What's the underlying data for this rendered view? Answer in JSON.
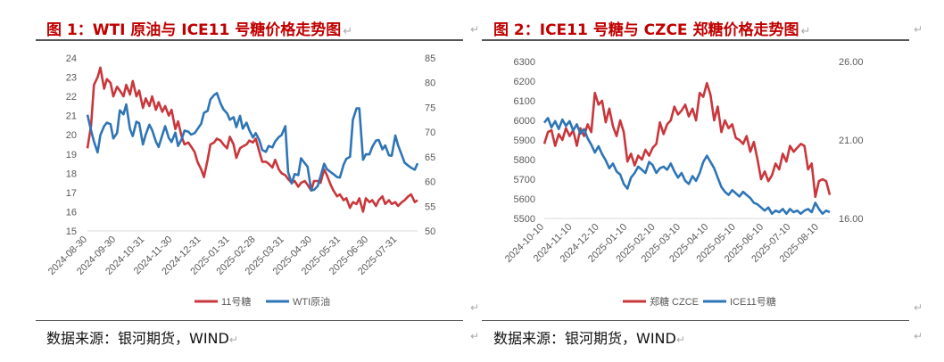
{
  "return_mark": "↵",
  "colors": {
    "red": "#c9373c",
    "blue": "#2e75b6",
    "title": "#c00000",
    "axis": "#d9d9d9"
  },
  "chart_data": [
    {
      "type": "line",
      "title": "图 1：WTI 原油与 ICE11 号糖价格走势图",
      "source": "数据来源：银河期货，WIND",
      "x_labels": [
        "2024-08-30",
        "2024-09-30",
        "2024-10-31",
        "2024-11-30",
        "2024-12-31",
        "2025-01-31",
        "2025-02-28",
        "2025-03-31",
        "2025-04-30",
        "2025-05-31",
        "2025-06-30",
        "2025-07-31"
      ],
      "x_range": [
        "2024-08-30",
        "2025-08-22"
      ],
      "y_left": {
        "ticks": [
          15,
          16,
          17,
          18,
          19,
          20,
          21,
          22,
          23,
          24
        ],
        "lim": [
          15,
          24
        ]
      },
      "y_right": {
        "ticks": [
          50,
          55,
          60,
          65,
          70,
          75,
          80,
          85
        ],
        "lim": [
          50,
          85
        ]
      },
      "legend": [
        "11号糖",
        "WTI原油"
      ],
      "legend_position": "bottom",
      "series": [
        {
          "name": "11号糖",
          "axis": "left",
          "color": "red",
          "dates": [
            "2024-08-30",
            "2024-09-03",
            "2024-09-06",
            "2024-09-10",
            "2024-09-13",
            "2024-09-17",
            "2024-09-20",
            "2024-09-24",
            "2024-09-27",
            "2024-10-01",
            "2024-10-04",
            "2024-10-08",
            "2024-10-11",
            "2024-10-15",
            "2024-10-18",
            "2024-10-22",
            "2024-10-25",
            "2024-10-29",
            "2024-11-01",
            "2024-11-05",
            "2024-11-08",
            "2024-11-12",
            "2024-11-15",
            "2024-11-19",
            "2024-11-22",
            "2024-11-26",
            "2024-11-29",
            "2024-12-03",
            "2024-12-06",
            "2024-12-10",
            "2024-12-13",
            "2024-12-17",
            "2024-12-20",
            "2024-12-24",
            "2024-12-27",
            "2024-12-31",
            "2025-01-03",
            "2025-01-07",
            "2025-01-10",
            "2025-01-14",
            "2025-01-17",
            "2025-01-21",
            "2025-01-24",
            "2025-01-28",
            "2025-01-31",
            "2025-02-04",
            "2025-02-07",
            "2025-02-11",
            "2025-02-14",
            "2025-02-18",
            "2025-02-21",
            "2025-02-25",
            "2025-02-28",
            "2025-03-04",
            "2025-03-07",
            "2025-03-11",
            "2025-03-14",
            "2025-03-18",
            "2025-03-21",
            "2025-03-25",
            "2025-03-28",
            "2025-04-01",
            "2025-04-04",
            "2025-04-08",
            "2025-04-11",
            "2025-04-15",
            "2025-04-18",
            "2025-04-22",
            "2025-04-25",
            "2025-04-29",
            "2025-05-02",
            "2025-05-06",
            "2025-05-09",
            "2025-05-13",
            "2025-05-16",
            "2025-05-20",
            "2025-05-23",
            "2025-05-27",
            "2025-05-30",
            "2025-06-03",
            "2025-06-06",
            "2025-06-10",
            "2025-06-13",
            "2025-06-17",
            "2025-06-20",
            "2025-06-24",
            "2025-06-27",
            "2025-07-01",
            "2025-07-04",
            "2025-07-08",
            "2025-07-11",
            "2025-07-15",
            "2025-07-18",
            "2025-07-22",
            "2025-07-25",
            "2025-07-29",
            "2025-08-01",
            "2025-08-05",
            "2025-08-08",
            "2025-08-12",
            "2025-08-15",
            "2025-08-19",
            "2025-08-22"
          ],
          "values": [
            19.3,
            20.5,
            22.6,
            23.0,
            23.5,
            22.4,
            22.9,
            22.7,
            22.0,
            22.5,
            22.3,
            22.0,
            22.6,
            22.1,
            22.8,
            22.0,
            22.3,
            21.4,
            21.9,
            21.5,
            22.0,
            21.3,
            21.7,
            21.2,
            21.5,
            21.0,
            21.3,
            20.3,
            20.7,
            19.9,
            19.5,
            19.6,
            19.4,
            19.1,
            18.6,
            18.2,
            17.8,
            18.7,
            19.5,
            19.6,
            19.8,
            19.7,
            19.5,
            19.3,
            19.9,
            19.5,
            18.8,
            19.3,
            19.4,
            19.5,
            19.7,
            19.6,
            19.8,
            19.1,
            18.6,
            18.6,
            18.5,
            18.3,
            18.7,
            18.2,
            18.0,
            17.9,
            17.7,
            17.5,
            17.6,
            17.3,
            17.5,
            17.6,
            17.4,
            17.1,
            17.6,
            17.6,
            17.5,
            18.2,
            17.9,
            17.4,
            17.1,
            16.8,
            16.9,
            16.6,
            16.7,
            16.2,
            16.5,
            16.4,
            16.7,
            16.0,
            16.7,
            16.5,
            16.6,
            16.3,
            16.6,
            16.8,
            16.4,
            16.6,
            16.4,
            16.5,
            16.3,
            16.5,
            16.6,
            16.8,
            16.9,
            16.5,
            16.6
          ]
        },
        {
          "name": "WTI原油",
          "axis": "right",
          "color": "blue",
          "dates": [
            "2024-08-30",
            "2024-09-03",
            "2024-09-06",
            "2024-09-10",
            "2024-09-13",
            "2024-09-17",
            "2024-09-20",
            "2024-09-24",
            "2024-09-27",
            "2024-10-01",
            "2024-10-04",
            "2024-10-08",
            "2024-10-11",
            "2024-10-15",
            "2024-10-18",
            "2024-10-22",
            "2024-10-25",
            "2024-10-29",
            "2024-11-01",
            "2024-11-05",
            "2024-11-08",
            "2024-11-12",
            "2024-11-15",
            "2024-11-19",
            "2024-11-22",
            "2024-11-26",
            "2024-11-29",
            "2024-12-03",
            "2024-12-06",
            "2024-12-10",
            "2024-12-13",
            "2024-12-17",
            "2024-12-20",
            "2024-12-24",
            "2024-12-27",
            "2024-12-31",
            "2025-01-03",
            "2025-01-07",
            "2025-01-10",
            "2025-01-14",
            "2025-01-17",
            "2025-01-21",
            "2025-01-24",
            "2025-01-28",
            "2025-01-31",
            "2025-02-04",
            "2025-02-07",
            "2025-02-11",
            "2025-02-14",
            "2025-02-18",
            "2025-02-21",
            "2025-02-25",
            "2025-02-28",
            "2025-03-04",
            "2025-03-07",
            "2025-03-11",
            "2025-03-14",
            "2025-03-18",
            "2025-03-21",
            "2025-03-25",
            "2025-03-28",
            "2025-04-01",
            "2025-04-04",
            "2025-04-08",
            "2025-04-11",
            "2025-04-15",
            "2025-04-18",
            "2025-04-22",
            "2025-04-25",
            "2025-04-29",
            "2025-05-02",
            "2025-05-06",
            "2025-05-09",
            "2025-05-13",
            "2025-05-16",
            "2025-05-20",
            "2025-05-23",
            "2025-05-27",
            "2025-05-30",
            "2025-06-03",
            "2025-06-06",
            "2025-06-10",
            "2025-06-13",
            "2025-06-17",
            "2025-06-20",
            "2025-06-24",
            "2025-06-27",
            "2025-07-01",
            "2025-07-04",
            "2025-07-08",
            "2025-07-11",
            "2025-07-15",
            "2025-07-18",
            "2025-07-22",
            "2025-07-25",
            "2025-07-29",
            "2025-08-01",
            "2025-08-05",
            "2025-08-08",
            "2025-08-12",
            "2025-08-15",
            "2025-08-19",
            "2025-08-22"
          ],
          "values": [
            73.5,
            70.3,
            68.1,
            65.9,
            69.4,
            71.2,
            71.9,
            71.6,
            68.7,
            69.8,
            74.4,
            73.6,
            75.6,
            70.6,
            69.2,
            72.1,
            71.8,
            67.5,
            69.5,
            71.5,
            70.4,
            68.1,
            67.0,
            69.4,
            71.2,
            68.8,
            68.0,
            69.9,
            67.2,
            68.6,
            70.3,
            70.1,
            69.5,
            69.8,
            70.6,
            71.7,
            73.9,
            74.3,
            76.6,
            77.5,
            77.9,
            75.8,
            74.6,
            73.8,
            72.5,
            73.0,
            71.0,
            73.3,
            70.7,
            71.9,
            70.4,
            68.9,
            69.8,
            68.3,
            66.4,
            66.0,
            67.2,
            66.9,
            68.1,
            69.0,
            69.4,
            71.2,
            61.9,
            59.6,
            61.5,
            61.3,
            64.7,
            63.7,
            63.0,
            58.2,
            58.3,
            59.1,
            61.0,
            63.6,
            62.5,
            61.9,
            61.5,
            60.9,
            60.8,
            63.4,
            64.6,
            65.0,
            72.5,
            74.8,
            74.8,
            64.4,
            65.5,
            65.5,
            67.0,
            68.3,
            68.4,
            66.5,
            67.3,
            65.3,
            65.2,
            69.3,
            67.3,
            65.3,
            63.8,
            63.2,
            62.8,
            62.4,
            63.7
          ]
        }
      ]
    },
    {
      "type": "line",
      "title": "图 2：ICE11 号糖与 CZCE 郑糖价格走势图",
      "source": "数据来源：银河期货，WIND",
      "x_labels": [
        "2024-10-10",
        "2024-11-10",
        "2024-12-10",
        "2025-01-10",
        "2025-02-10",
        "2025-03-10",
        "2025-04-10",
        "2025-05-10",
        "2025-06-10",
        "2025-07-10",
        "2025-08-10"
      ],
      "x_range": [
        "2024-10-10",
        "2025-08-22"
      ],
      "y_left": {
        "ticks": [
          5500,
          5600,
          5700,
          5800,
          5900,
          6000,
          6100,
          6200,
          6300
        ],
        "lim": [
          5500,
          6300
        ]
      },
      "y_right": {
        "ticks": [
          "16.00",
          "21.00",
          "26.00"
        ],
        "lim": [
          16,
          26
        ]
      },
      "legend": [
        "郑糖 CZCE",
        "ICE11号糖"
      ],
      "legend_position": "bottom",
      "series": [
        {
          "name": "郑糖 CZCE",
          "axis": "left",
          "color": "red",
          "dates": [
            "2024-10-10",
            "2024-10-14",
            "2024-10-18",
            "2024-10-22",
            "2024-10-26",
            "2024-10-30",
            "2024-11-03",
            "2024-11-07",
            "2024-11-11",
            "2024-11-15",
            "2024-11-19",
            "2024-11-23",
            "2024-11-27",
            "2024-12-01",
            "2024-12-05",
            "2024-12-09",
            "2024-12-13",
            "2024-12-17",
            "2024-12-21",
            "2024-12-25",
            "2024-12-29",
            "2025-01-02",
            "2025-01-06",
            "2025-01-10",
            "2025-01-14",
            "2025-01-18",
            "2025-01-22",
            "2025-01-26",
            "2025-01-30",
            "2025-02-03",
            "2025-02-07",
            "2025-02-11",
            "2025-02-15",
            "2025-02-19",
            "2025-02-23",
            "2025-02-27",
            "2025-03-03",
            "2025-03-07",
            "2025-03-11",
            "2025-03-15",
            "2025-03-19",
            "2025-03-23",
            "2025-03-27",
            "2025-03-31",
            "2025-04-04",
            "2025-04-08",
            "2025-04-12",
            "2025-04-16",
            "2025-04-20",
            "2025-04-24",
            "2025-04-28",
            "2025-05-02",
            "2025-05-06",
            "2025-05-10",
            "2025-05-14",
            "2025-05-18",
            "2025-05-22",
            "2025-05-26",
            "2025-05-30",
            "2025-06-03",
            "2025-06-07",
            "2025-06-11",
            "2025-06-15",
            "2025-06-19",
            "2025-06-23",
            "2025-06-27",
            "2025-07-01",
            "2025-07-05",
            "2025-07-09",
            "2025-07-13",
            "2025-07-17",
            "2025-07-21",
            "2025-07-25",
            "2025-07-29",
            "2025-08-02",
            "2025-08-06",
            "2025-08-10",
            "2025-08-14",
            "2025-08-18",
            "2025-08-22"
          ],
          "values": [
            5880,
            5940,
            5950,
            5870,
            5930,
            5900,
            5960,
            5920,
            5950,
            5870,
            5960,
            5920,
            5980,
            5940,
            6140,
            6080,
            6100,
            5990,
            6060,
            5970,
            5920,
            6000,
            5940,
            5790,
            5830,
            5770,
            5820,
            5800,
            5850,
            5820,
            5860,
            5880,
            5990,
            5930,
            5980,
            6000,
            6070,
            6030,
            6050,
            6080,
            6020,
            6060,
            6000,
            6140,
            6120,
            6190,
            6130,
            6000,
            6070,
            5940,
            6000,
            5960,
            5980,
            5910,
            5900,
            5880,
            5920,
            5840,
            5890,
            5800,
            5700,
            5740,
            5690,
            5720,
            5780,
            5750,
            5830,
            5790,
            5870,
            5840,
            5860,
            5880,
            5870,
            5750,
            5780,
            5610,
            5690,
            5700,
            5690,
            5620
          ]
        },
        {
          "name": "ICE11号糖",
          "axis": "right",
          "color": "blue",
          "dates": [
            "2024-10-10",
            "2024-10-14",
            "2024-10-18",
            "2024-10-22",
            "2024-10-26",
            "2024-10-30",
            "2024-11-03",
            "2024-11-07",
            "2024-11-11",
            "2024-11-15",
            "2024-11-19",
            "2024-11-23",
            "2024-11-27",
            "2024-12-01",
            "2024-12-05",
            "2024-12-09",
            "2024-12-13",
            "2024-12-17",
            "2024-12-21",
            "2024-12-25",
            "2024-12-29",
            "2025-01-02",
            "2025-01-06",
            "2025-01-10",
            "2025-01-14",
            "2025-01-18",
            "2025-01-22",
            "2025-01-26",
            "2025-01-30",
            "2025-02-03",
            "2025-02-07",
            "2025-02-11",
            "2025-02-15",
            "2025-02-19",
            "2025-02-23",
            "2025-02-27",
            "2025-03-03",
            "2025-03-07",
            "2025-03-11",
            "2025-03-15",
            "2025-03-19",
            "2025-03-23",
            "2025-03-27",
            "2025-03-31",
            "2025-04-04",
            "2025-04-08",
            "2025-04-12",
            "2025-04-16",
            "2025-04-20",
            "2025-04-24",
            "2025-04-28",
            "2025-05-02",
            "2025-05-06",
            "2025-05-10",
            "2025-05-14",
            "2025-05-18",
            "2025-05-22",
            "2025-05-26",
            "2025-05-30",
            "2025-06-03",
            "2025-06-07",
            "2025-06-11",
            "2025-06-15",
            "2025-06-19",
            "2025-06-23",
            "2025-06-27",
            "2025-07-01",
            "2025-07-05",
            "2025-07-09",
            "2025-07-13",
            "2025-07-17",
            "2025-07-21",
            "2025-07-25",
            "2025-07-29",
            "2025-08-02",
            "2025-08-06",
            "2025-08-10",
            "2025-08-14",
            "2025-08-18",
            "2025-08-22"
          ],
          "values": [
            22.1,
            22.4,
            21.8,
            22.2,
            21.7,
            22.3,
            21.9,
            22.2,
            21.6,
            22.0,
            21.4,
            21.7,
            21.1,
            20.7,
            20.2,
            20.6,
            20.1,
            19.7,
            19.2,
            19.5,
            19.0,
            18.8,
            18.2,
            17.9,
            18.6,
            18.9,
            19.3,
            19.1,
            18.9,
            19.6,
            19.4,
            18.9,
            19.2,
            19.3,
            19.1,
            19.5,
            19.0,
            18.6,
            18.9,
            18.4,
            18.2,
            18.7,
            18.4,
            18.9,
            19.6,
            20.0,
            19.6,
            19.2,
            18.6,
            18.0,
            17.7,
            17.5,
            17.8,
            17.6,
            17.4,
            17.7,
            17.5,
            17.3,
            17.0,
            16.9,
            16.7,
            16.5,
            16.7,
            16.3,
            16.5,
            16.4,
            16.6,
            16.3,
            16.6,
            16.4,
            16.5,
            16.3,
            16.5,
            16.6,
            16.4,
            17.0,
            16.6,
            16.3,
            16.5,
            16.4
          ]
        }
      ]
    }
  ]
}
